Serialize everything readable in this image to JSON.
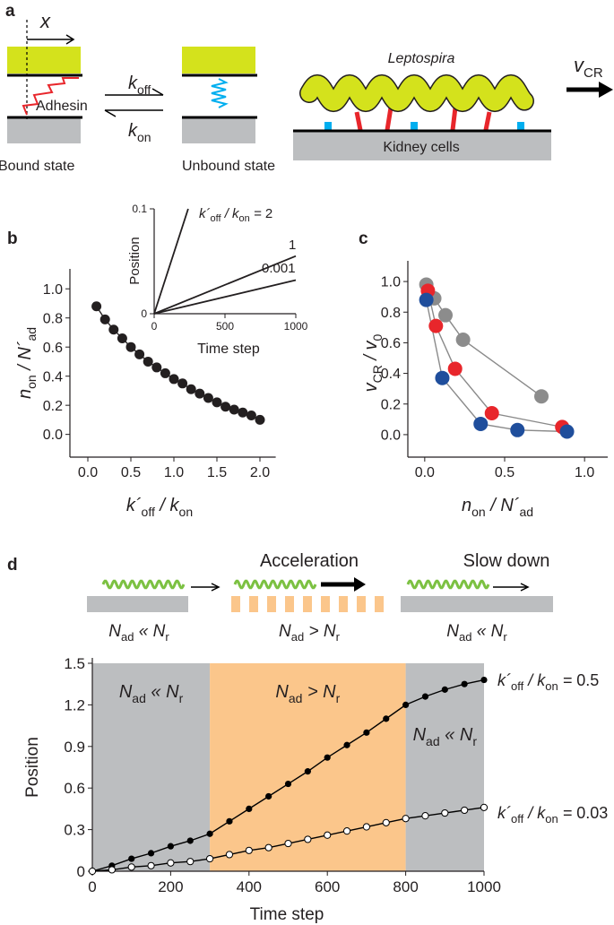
{
  "panel_labels": [
    "a",
    "b",
    "c",
    "d"
  ],
  "panel_a": {
    "x": "x",
    "k_off": [
      "k",
      "off"
    ],
    "k_on": [
      "k",
      "on"
    ],
    "adhesin": "Adhesin",
    "bound": "Bound state",
    "unbound": "Unbound state",
    "organism": "Leptospira",
    "velocity": [
      "v",
      "CR"
    ],
    "substrate": "Kidney cells"
  },
  "panel_d_schematic": {
    "accelerate": "Acceleration",
    "slow": "Slow down",
    "conditions": [
      [
        "N",
        "ad",
        " « N",
        "r"
      ],
      [
        "N",
        "ad",
        " > N",
        "r"
      ],
      [
        "N",
        "ad",
        " « N",
        "r"
      ]
    ]
  },
  "chart_data": [
    {
      "type": "line",
      "x_label": [
        "k´",
        "off",
        " / k",
        "on"
      ],
      "y_label": [
        "n",
        "on",
        " / N´",
        "ad"
      ],
      "x": [
        0.1,
        0.2,
        0.3,
        0.4,
        0.5,
        0.6,
        0.7,
        0.8,
        0.9,
        1.0,
        1.1,
        1.2,
        1.3,
        1.4,
        1.5,
        1.6,
        1.7,
        1.8,
        1.9,
        2.0
      ],
      "series": [
        {
          "color": "#231f20",
          "values": [
            0.88,
            0.79,
            0.72,
            0.66,
            0.6,
            0.55,
            0.5,
            0.46,
            0.42,
            0.38,
            0.35,
            0.31,
            0.28,
            0.25,
            0.22,
            0.19,
            0.17,
            0.15,
            0.13,
            0.1
          ]
        }
      ],
      "xlim": [
        -0.1,
        2.1
      ],
      "ylim": [
        -0.15,
        1.1
      ],
      "xticks": [
        {
          "value": 0,
          "label": "0.0"
        },
        {
          "value": 0.5,
          "label": "0.5"
        },
        {
          "value": 1,
          "label": "1.0"
        },
        {
          "value": 1.5,
          "label": "1.5"
        },
        {
          "value": 2,
          "label": "2.0"
        }
      ],
      "yticks": [
        {
          "value": 0,
          "label": "0.0"
        },
        {
          "value": 0.2,
          "label": "0.2"
        },
        {
          "value": 0.4,
          "label": "0.4"
        },
        {
          "value": 0.6,
          "label": "0.6"
        },
        {
          "value": 0.8,
          "label": "0.8"
        },
        {
          "value": 1,
          "label": "1.0"
        }
      ],
      "markers": true,
      "marker_size": 5.5
    },
    {
      "type": "line",
      "x_label": "Time step",
      "y_label": "Position",
      "annotation": [
        "k´",
        "off",
        " / k",
        "on",
        " = "
      ],
      "series": [
        {
          "name": "2",
          "color": "#231f20",
          "x": [
            0,
            240
          ],
          "values": [
            0,
            0.1
          ]
        },
        {
          "name": "1",
          "color": "#231f20",
          "x": [
            0,
            1000
          ],
          "values": [
            0,
            0.055
          ]
        },
        {
          "name": "0.001",
          "color": "#231f20",
          "x": [
            0,
            1000
          ],
          "values": [
            0,
            0.032
          ]
        }
      ],
      "xlim": [
        0,
        1000
      ],
      "ylim": [
        0,
        0.1
      ],
      "xticks": [
        0,
        500,
        1000
      ],
      "yticks": [
        0,
        0.1
      ],
      "markers": false
    },
    {
      "type": "line",
      "x_label": [
        "n",
        "on",
        " / N´",
        "ad"
      ],
      "y_label": [
        "v",
        "CR",
        " / v",
        "0"
      ],
      "line_color": "#8a8a8a",
      "series": [
        {
          "color": "#8c8c8c",
          "x": [
            0.01,
            0.06,
            0.13,
            0.24,
            0.73
          ],
          "values": [
            0.98,
            0.89,
            0.78,
            0.62,
            0.25
          ]
        },
        {
          "color": "#e8262b",
          "x": [
            0.02,
            0.07,
            0.19,
            0.42,
            0.86
          ],
          "values": [
            0.94,
            0.71,
            0.43,
            0.14,
            0.05
          ]
        },
        {
          "color": "#1f4e9c",
          "x": [
            0.01,
            0.11,
            0.35,
            0.58,
            0.89
          ],
          "values": [
            0.88,
            0.37,
            0.07,
            0.03,
            0.02
          ]
        }
      ],
      "xlim": [
        -0.1,
        1.1
      ],
      "ylim": [
        -0.1,
        1.1
      ],
      "xticks": [
        {
          "value": 0,
          "label": "0.0"
        },
        {
          "value": 0.5,
          "label": "0.5"
        },
        {
          "value": 1,
          "label": "1.0"
        }
      ],
      "yticks": [
        {
          "value": 0,
          "label": "0.0"
        },
        {
          "value": 0.2,
          "label": "0.2"
        },
        {
          "value": 0.4,
          "label": "0.4"
        },
        {
          "value": 0.6,
          "label": "0.6"
        },
        {
          "value": 0.8,
          "label": "0.8"
        },
        {
          "value": 1,
          "label": "1.0"
        }
      ],
      "markers": true,
      "marker_size": 8
    },
    {
      "type": "line",
      "x_label": "Time step",
      "y_label": "Position",
      "legend_prefix": [
        "k´",
        "off",
        " / k",
        "on",
        " = "
      ],
      "regions": [
        {
          "start": 0,
          "end": 300,
          "color": "#bcbec0",
          "label": [
            "N",
            "ad",
            " « N",
            "r"
          ]
        },
        {
          "start": 300,
          "end": 800,
          "color": "#fbc68b",
          "label": [
            "N",
            "ad",
            " > N",
            "r"
          ]
        },
        {
          "start": 800,
          "end": 1000,
          "color": "#bcbec0",
          "label": [
            "N",
            "ad",
            " « N",
            "r"
          ]
        }
      ],
      "x": [
        0,
        50,
        100,
        150,
        200,
        250,
        300,
        350,
        400,
        450,
        500,
        550,
        600,
        650,
        700,
        750,
        800,
        850,
        900,
        950,
        1000
      ],
      "series": [
        {
          "name": "0.5",
          "color": "#000000",
          "values": [
            0,
            0.04,
            0.09,
            0.13,
            0.18,
            0.22,
            0.27,
            0.36,
            0.45,
            0.54,
            0.63,
            0.72,
            0.82,
            0.91,
            1.0,
            1.1,
            1.2,
            1.26,
            1.31,
            1.35,
            1.38
          ]
        },
        {
          "name": "0.03",
          "color": "#000000",
          "marker_fill": "#ffffff",
          "values": [
            0,
            0.01,
            0.03,
            0.04,
            0.06,
            0.07,
            0.09,
            0.12,
            0.15,
            0.17,
            0.2,
            0.23,
            0.26,
            0.29,
            0.32,
            0.35,
            0.38,
            0.4,
            0.42,
            0.44,
            0.46
          ]
        }
      ],
      "xlim": [
        0,
        1000
      ],
      "ylim": [
        0,
        1.5
      ],
      "xticks": [
        0,
        200,
        400,
        600,
        800,
        1000
      ],
      "yticks": [
        0,
        0.3,
        0.6,
        0.9,
        1.2,
        1.5
      ],
      "markers": true,
      "marker_size": 3.6
    }
  ]
}
